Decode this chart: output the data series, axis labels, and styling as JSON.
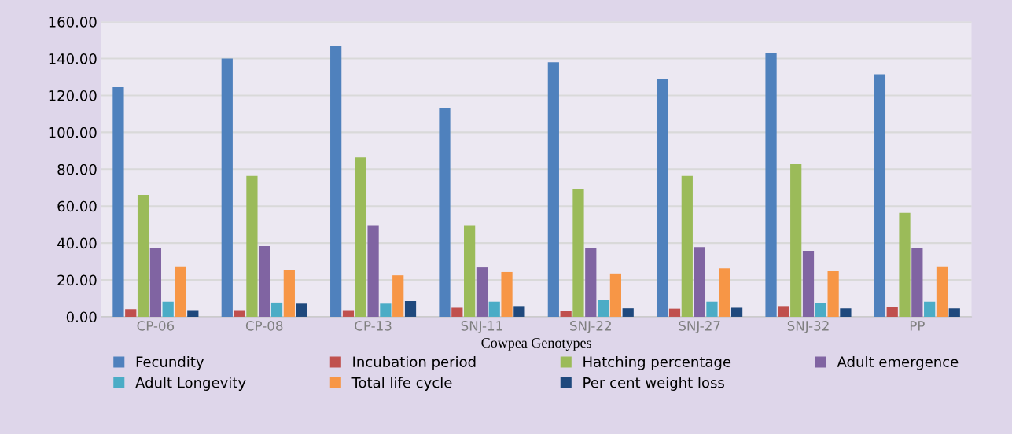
{
  "chart_data": {
    "type": "bar",
    "xlabel": "Cowpea Genotypes",
    "categories": [
      "CP-06",
      "CP-08",
      "CP-13",
      "SNJ-11",
      "SNJ-22",
      "SNJ-27",
      "SNJ-32",
      "PP"
    ],
    "series": [
      {
        "name": "Fecundity",
        "color": "#4f81bd",
        "values": [
          124.4,
          140,
          147,
          113.4,
          138,
          129,
          143,
          131.5
        ]
      },
      {
        "name": "Incubation period",
        "color": "#c0504d",
        "values": [
          4.1,
          3.6,
          3.6,
          4.9,
          3.3,
          4.4,
          5.8,
          5.3
        ]
      },
      {
        "name": "Hatching percentage",
        "color": "#9bbb59",
        "values": [
          66,
          76.4,
          86.4,
          49.6,
          69.5,
          76.4,
          83,
          56.4
        ]
      },
      {
        "name": "Adult emergence",
        "color": "#8064a2",
        "values": [
          37.3,
          38.3,
          49.6,
          26.8,
          37.1,
          37.8,
          35.8,
          37.1
        ]
      },
      {
        "name": "Adult Longevity",
        "color": "#4bacc6",
        "values": [
          8.2,
          7.7,
          7.1,
          8.2,
          9,
          8.2,
          7.7,
          8.2
        ]
      },
      {
        "name": "Total life cycle",
        "color": "#f79646",
        "values": [
          27.4,
          25.5,
          22.5,
          24.3,
          23.5,
          26.3,
          24.7,
          27.4
        ]
      },
      {
        "name": "Per cent weight loss",
        "color": "#1f497d",
        "values": [
          3.6,
          7.1,
          8.5,
          5.8,
          4.6,
          4.9,
          4.6,
          4.6
        ]
      }
    ],
    "ylim": [
      0,
      160
    ],
    "yticks": [
      {
        "value": 0,
        "label": "0.00"
      },
      {
        "value": 20,
        "label": "20.00"
      },
      {
        "value": 40,
        "label": "40.00"
      },
      {
        "value": 60,
        "label": "60.00"
      },
      {
        "value": 80,
        "label": "80.00"
      },
      {
        "value": 100,
        "label": "100.00"
      },
      {
        "value": 120,
        "label": "120.00"
      },
      {
        "value": 140,
        "label": "140.00"
      },
      {
        "value": 160,
        "label": "160.00"
      }
    ],
    "grid": "y",
    "legend": "bottom"
  }
}
